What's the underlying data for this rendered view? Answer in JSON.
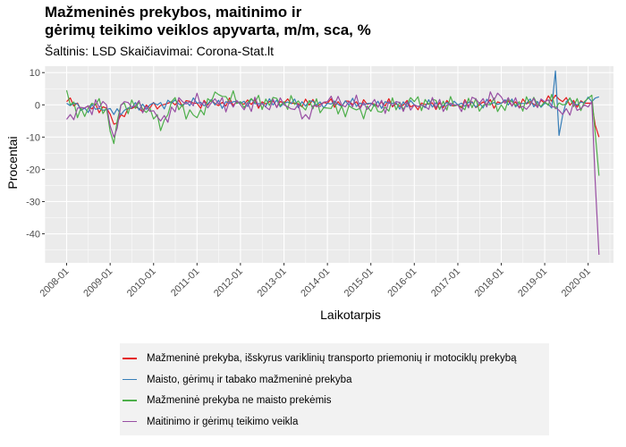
{
  "chart_data": {
    "type": "line",
    "title_line1": "Mažmeninės prekybos, maitinimo ir",
    "title_line2": "gėrimų teikimo veiklos apyvarta, m/m, sca, %",
    "subtitle": "Šaltinis: LSD Skaičiavimai: Corona-Stat.lt",
    "xlabel": "Laikotarpis",
    "ylabel": "Procentai",
    "ylim": [
      -49,
      12
    ],
    "xlim": [
      "2007-07-01",
      "2020-08-01"
    ],
    "y_ticks": [
      10,
      0,
      -10,
      -20,
      -30,
      -40
    ],
    "x_ticks": [
      "2008-01",
      "2009-01",
      "2010-01",
      "2011-01",
      "2012-01",
      "2013-01",
      "2014-01",
      "2015-01",
      "2016-01",
      "2017-01",
      "2018-01",
      "2019-01",
      "2020-01"
    ],
    "grid": true,
    "legend_position": "bottom",
    "series": [
      {
        "name": "Mažmeninė prekyba, išskyrus variklinių transporto priemonių ir motociklų prekybą",
        "color": "#e41a1c",
        "keypoints": [
          [
            "2008-01",
            1
          ],
          [
            "2008-06",
            -1
          ],
          [
            "2008-12",
            -1
          ],
          [
            "2009-02",
            -6
          ],
          [
            "2009-06",
            -1
          ],
          [
            "2009-12",
            -1
          ],
          [
            "2010-06",
            1
          ],
          [
            "2011-01",
            0.5
          ],
          [
            "2012-01",
            0.5
          ],
          [
            "2013-01",
            0.5
          ],
          [
            "2014-01",
            0.5
          ],
          [
            "2015-01",
            0.5
          ],
          [
            "2016-01",
            0
          ],
          [
            "2017-01",
            0
          ],
          [
            "2018-01",
            0.5
          ],
          [
            "2019-01",
            0.5
          ],
          [
            "2019-04",
            3
          ],
          [
            "2019-06",
            1
          ],
          [
            "2019-12",
            0.5
          ],
          [
            "2020-02",
            0.5
          ],
          [
            "2020-04",
            -10
          ]
        ]
      },
      {
        "name": "Maisto, gėrimų ir tabako mažmeninė prekyba",
        "color": "#377eb8",
        "keypoints": [
          [
            "2008-01",
            0.5
          ],
          [
            "2008-06",
            -1
          ],
          [
            "2008-12",
            -1.5
          ],
          [
            "2009-02",
            -3
          ],
          [
            "2009-06",
            -1
          ],
          [
            "2009-12",
            0
          ],
          [
            "2010-06",
            0.5
          ],
          [
            "2011-01",
            0.5
          ],
          [
            "2012-01",
            0.5
          ],
          [
            "2013-01",
            0.5
          ],
          [
            "2014-01",
            0.5
          ],
          [
            "2015-01",
            0.5
          ],
          [
            "2016-01",
            0
          ],
          [
            "2017-01",
            0
          ],
          [
            "2018-01",
            0.5
          ],
          [
            "2019-01",
            0.5
          ],
          [
            "2019-03",
            -1
          ],
          [
            "2019-04",
            10.5
          ],
          [
            "2019-05",
            -9.5
          ],
          [
            "2019-07",
            1
          ],
          [
            "2019-12",
            0.5
          ],
          [
            "2020-02",
            1
          ],
          [
            "2020-04",
            2.5
          ]
        ]
      },
      {
        "name": "Mažmeninė prekyba ne maisto prekėmis",
        "color": "#4daf4a",
        "keypoints": [
          [
            "2008-01",
            4.5
          ],
          [
            "2008-04",
            -4
          ],
          [
            "2008-08",
            0.5
          ],
          [
            "2008-12",
            -1
          ],
          [
            "2009-02",
            -12
          ],
          [
            "2009-04",
            0
          ],
          [
            "2009-12",
            -1
          ],
          [
            "2010-03",
            -8
          ],
          [
            "2010-06",
            1
          ],
          [
            "2011-01",
            -4
          ],
          [
            "2011-06",
            4
          ],
          [
            "2012-01",
            1
          ],
          [
            "2013-01",
            1
          ],
          [
            "2014-01",
            -1
          ],
          [
            "2015-01",
            -2
          ],
          [
            "2016-01",
            1
          ],
          [
            "2017-01",
            0
          ],
          [
            "2018-01",
            0
          ],
          [
            "2019-01",
            1
          ],
          [
            "2019-06",
            0
          ],
          [
            "2019-12",
            1
          ],
          [
            "2020-02",
            3
          ],
          [
            "2020-04",
            -22
          ]
        ]
      },
      {
        "name": "Maitinimo ir gėrimų teikimo veikla",
        "color": "#984ea3",
        "keypoints": [
          [
            "2008-01",
            -4.5
          ],
          [
            "2008-06",
            -1
          ],
          [
            "2008-12",
            0
          ],
          [
            "2009-02",
            -10
          ],
          [
            "2009-05",
            1
          ],
          [
            "2009-12",
            -2
          ],
          [
            "2010-03",
            -5
          ],
          [
            "2010-09",
            1
          ],
          [
            "2011-03",
            1
          ],
          [
            "2012-01",
            0
          ],
          [
            "2013-01",
            0
          ],
          [
            "2013-07",
            -3
          ],
          [
            "2014-01",
            1
          ],
          [
            "2015-01",
            0
          ],
          [
            "2016-01",
            0
          ],
          [
            "2017-01",
            0
          ],
          [
            "2018-01",
            2.5
          ],
          [
            "2018-06",
            -1
          ],
          [
            "2019-01",
            1
          ],
          [
            "2019-06",
            -3
          ],
          [
            "2019-12",
            0
          ],
          [
            "2020-02",
            1
          ],
          [
            "2020-04",
            -46.5
          ]
        ]
      }
    ]
  }
}
